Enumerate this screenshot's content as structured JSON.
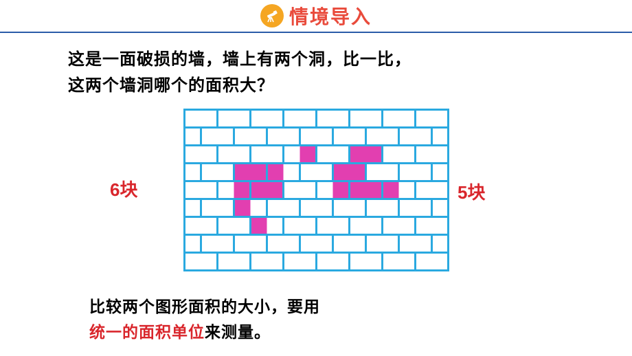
{
  "header": {
    "title": "情境导入",
    "icon_bg": "#f5a623",
    "icon_name": "telescope-icon",
    "title_color": "#e94b3c",
    "title_fontsize": 28
  },
  "divider_color": "#2a5ca8",
  "question": {
    "line1": "这是一面破损的墙，墙上有两个洞，比一比，",
    "line2": "这两个墙洞哪个的面积大？",
    "fontsize": 24,
    "color": "#000000"
  },
  "labels": {
    "left": "6块",
    "right": "5块",
    "color": "#d9262c",
    "fontsize": 26
  },
  "wall": {
    "rows": 9,
    "cols": 8,
    "brick_w": 48,
    "brick_h": 26,
    "line_color": "#2aa9e0",
    "line_width": 3,
    "bg_color": "#ffffff",
    "hole_color": "#e23fb0",
    "left_hole_bricks": [
      {
        "row": 2,
        "col": 3,
        "half": "right"
      },
      {
        "row": 3,
        "col": 2,
        "half": "whole"
      },
      {
        "row": 3,
        "col": 3,
        "half": "left"
      },
      {
        "row": 4,
        "col": 1,
        "half": "right"
      },
      {
        "row": 4,
        "col": 2,
        "half": "whole"
      },
      {
        "row": 5,
        "col": 2,
        "half": "left"
      },
      {
        "row": 6,
        "col": 2,
        "half": "left"
      }
    ],
    "right_hole_bricks": [
      {
        "row": 2,
        "col": 5,
        "half": "whole"
      },
      {
        "row": 3,
        "col": 5,
        "half": "left"
      },
      {
        "row": 3,
        "col": 5,
        "half": "right"
      },
      {
        "row": 4,
        "col": 4,
        "half": "right"
      },
      {
        "row": 4,
        "col": 5,
        "half": "whole"
      },
      {
        "row": 4,
        "col": 6,
        "half": "left"
      }
    ]
  },
  "conclusion": {
    "part1": "比较两个图形面积的大小，要用",
    "highlight": "统一的面积单位",
    "part2": "来测量。",
    "fontsize": 23,
    "color": "#000000",
    "highlight_color": "#d9262c"
  }
}
